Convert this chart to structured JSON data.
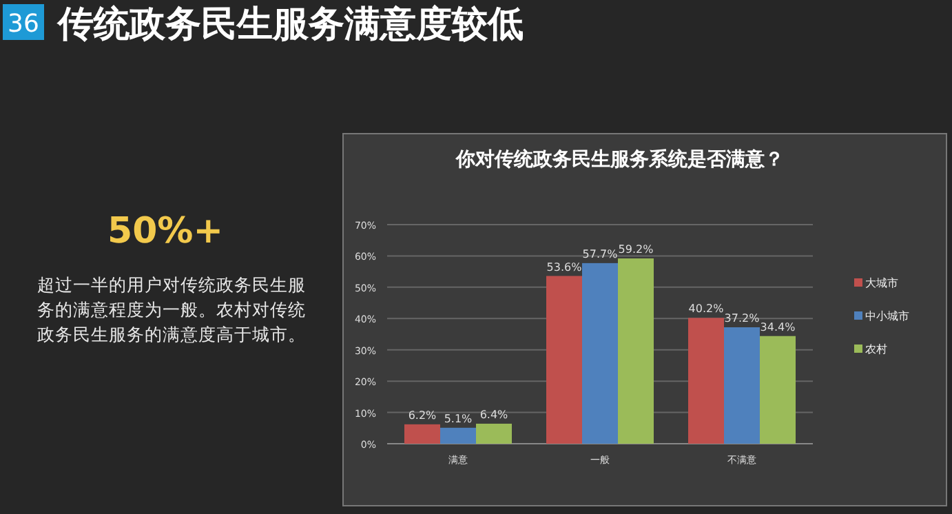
{
  "chart_data": {
    "type": "bar",
    "title": "传统政务民生服务满意度较低",
    "subtitle": "你对传统政务民生服务系统是否满意？",
    "annotations": [
      "36",
      "50%+",
      "超过一半的用户对传统政务民生服务的满意程度为一般。农村对传统政务民生服务的满意度高于城市。"
    ],
    "categories": [
      "满意",
      "一般",
      "不满意"
    ],
    "series": [
      {
        "name": "大城市",
        "color": "#c0504d",
        "values": [
          6.2,
          53.6,
          40.2
        ],
        "value_labels": [
          "6.2%",
          "53.6%",
          "40.2%"
        ]
      },
      {
        "name": "中小城市",
        "color": "#4f81bd",
        "values": [
          5.1,
          57.7,
          37.2
        ],
        "value_labels": [
          "5.1%",
          "57.7%",
          "37.2%"
        ]
      },
      {
        "name": "农村",
        "color": "#9bbb59",
        "values": [
          6.4,
          59.2,
          34.4
        ],
        "value_labels": [
          "6.4%",
          "59.2%",
          "34.4%"
        ]
      }
    ],
    "ylim": [
      0,
      70
    ],
    "yticks": [
      {
        "value": 0,
        "label": "0%"
      },
      {
        "value": 10,
        "label": "10%"
      },
      {
        "value": 20,
        "label": "20%"
      },
      {
        "value": 30,
        "label": "30%"
      },
      {
        "value": 40,
        "label": "40%"
      },
      {
        "value": 50,
        "label": "50%"
      },
      {
        "value": 60,
        "label": "60%"
      },
      {
        "value": 70,
        "label": "70%"
      }
    ],
    "grid": "y",
    "legend": "right"
  }
}
